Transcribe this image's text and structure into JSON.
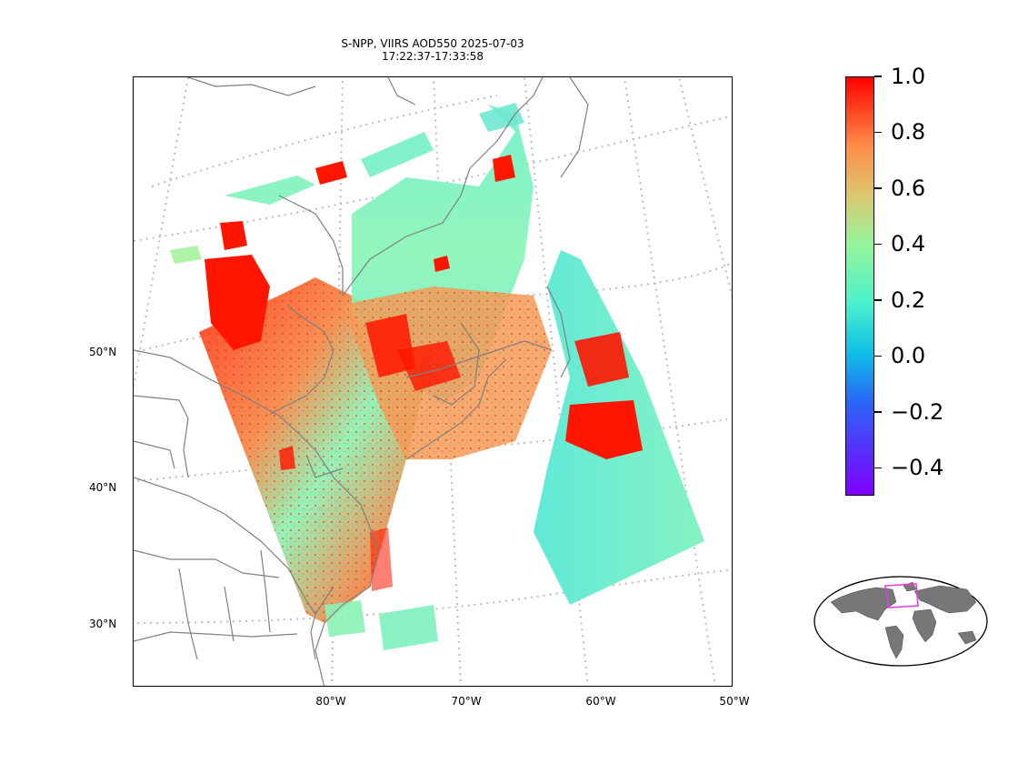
{
  "title": {
    "line1": "S-NPP, VIIRS AOD550 2025-07-03",
    "line2": "17:22:37-17:33:58"
  },
  "map": {
    "latitude_labels": [
      "50°N",
      "40°N",
      "30°N"
    ],
    "longitude_labels": [
      "80°W",
      "70°W",
      "60°W",
      "50°W"
    ]
  },
  "colorbar": {
    "min": -0.5,
    "max": 1.0,
    "colormap": "rainbow",
    "ticks": [
      "1.0",
      "0.8",
      "0.6",
      "0.4",
      "0.2",
      "0.0",
      "−0.2",
      "−0.4"
    ],
    "tick_values": [
      1.0,
      0.8,
      0.6,
      0.4,
      0.2,
      0.0,
      -0.2,
      -0.4
    ]
  },
  "inset": {
    "icon": "world-globe-icon",
    "land_color": "#777777",
    "highlight_color": "#e040e0"
  },
  "colors": {
    "coastline": "#808080",
    "graticule": "#bbbbbb",
    "aod_high": "#ff0000",
    "aod_mid": "#f5a35a",
    "aod_low": "#7ff5c8"
  }
}
